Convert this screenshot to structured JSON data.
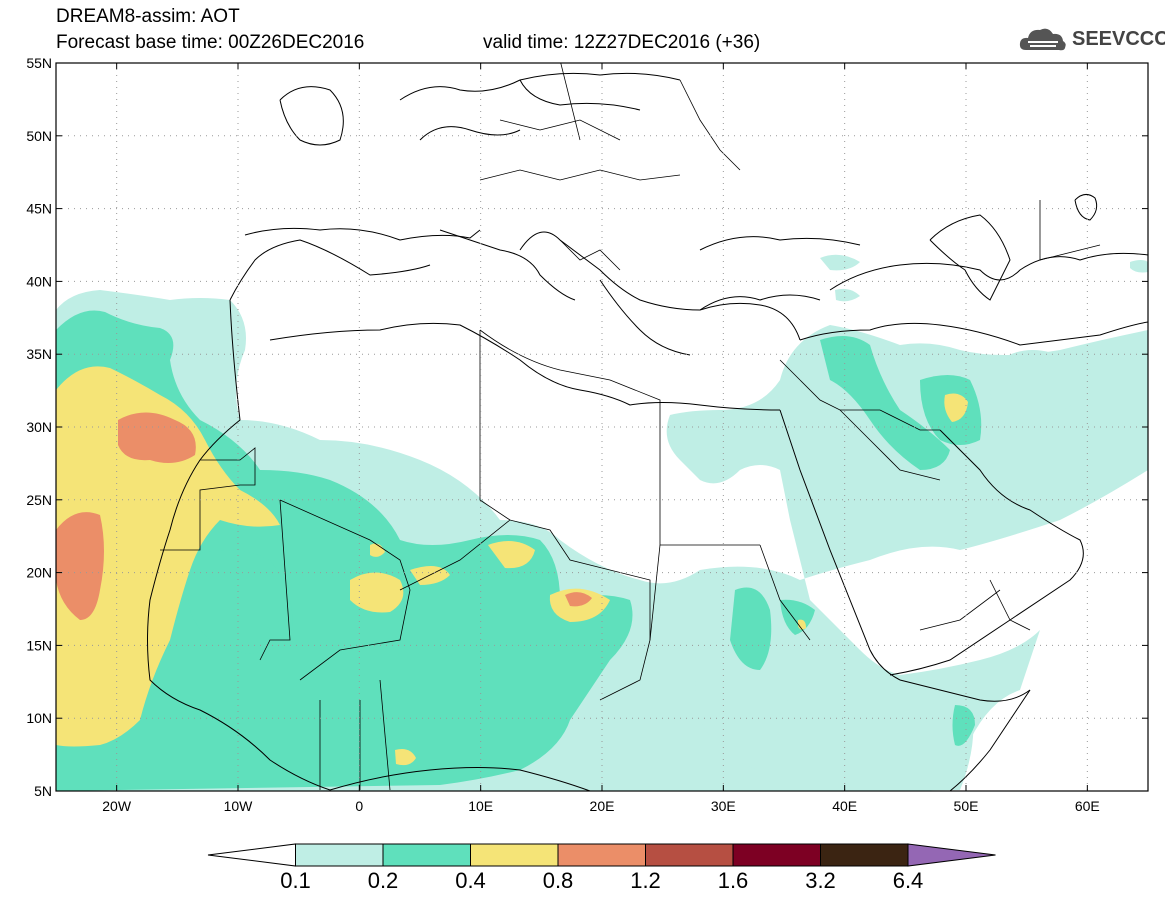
{
  "header": {
    "title": "DREAM8-assim: AOT",
    "base_time": "Forecast base time: 00Z26DEC2016",
    "valid_time": "valid time: 12Z27DEC2016 (+36)",
    "logo_text": "SEEVCCC"
  },
  "map": {
    "lon_range": [
      -25,
      65
    ],
    "lat_range": [
      5,
      55
    ],
    "lat_ticks": [
      "55N",
      "50N",
      "45N",
      "40N",
      "35N",
      "30N",
      "25N",
      "20N",
      "15N",
      "10N",
      "5N"
    ],
    "lon_ticks": [
      "20W",
      "10W",
      "0",
      "10E",
      "20E",
      "30E",
      "40E",
      "50E",
      "60E"
    ],
    "gridlines": "dotted"
  },
  "colorbar": {
    "labels": [
      "0.1",
      "0.2",
      "0.4",
      "0.8",
      "1.2",
      "1.6",
      "3.2",
      "6.4"
    ],
    "colors": [
      "#ffffff",
      "#bfeee5",
      "#5fe0bc",
      "#f5e477",
      "#eb8e68",
      "#b64f42",
      "#7d0023",
      "#3b2412",
      "#9467b4"
    ]
  }
}
